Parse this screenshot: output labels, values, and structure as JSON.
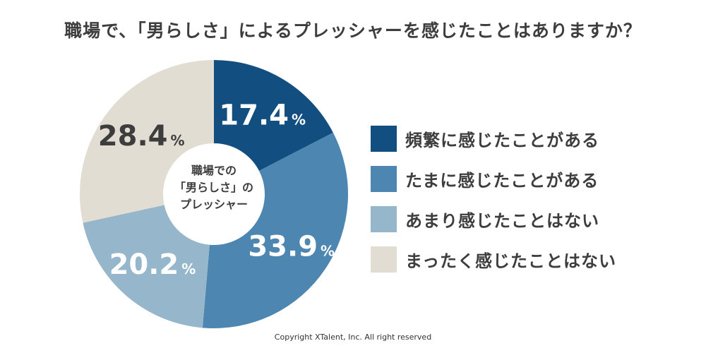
{
  "title": "職場で、「男らしさ」によるプレッシャーを感じたことはありますか？",
  "center_label": [
    "職場での",
    "「男らしさ」の",
    "プレッシャー"
  ],
  "copyright": "Copyright XTalent, Inc. All right reserved",
  "chart_data": {
    "type": "pie",
    "donut": true,
    "title": "職場で、「男らしさ」によるプレッシャーを感じたことはありますか？",
    "unit": "%",
    "legend_position": "right",
    "slices": [
      {
        "label": "頻繁に感じたことがある",
        "value": 17.4,
        "color": "#124f80",
        "text_color": "#ffffff"
      },
      {
        "label": "たまに感じたことがある",
        "value": 33.9,
        "color": "#4c86b1",
        "text_color": "#ffffff"
      },
      {
        "label": "あまり感じたことはない",
        "value": 20.2,
        "color": "#95b6cb",
        "text_color": "#ffffff"
      },
      {
        "label": "まったく感じたことはない",
        "value": 28.4,
        "color": "#e1ddd3",
        "text_color": "#3d3d3d"
      }
    ]
  }
}
